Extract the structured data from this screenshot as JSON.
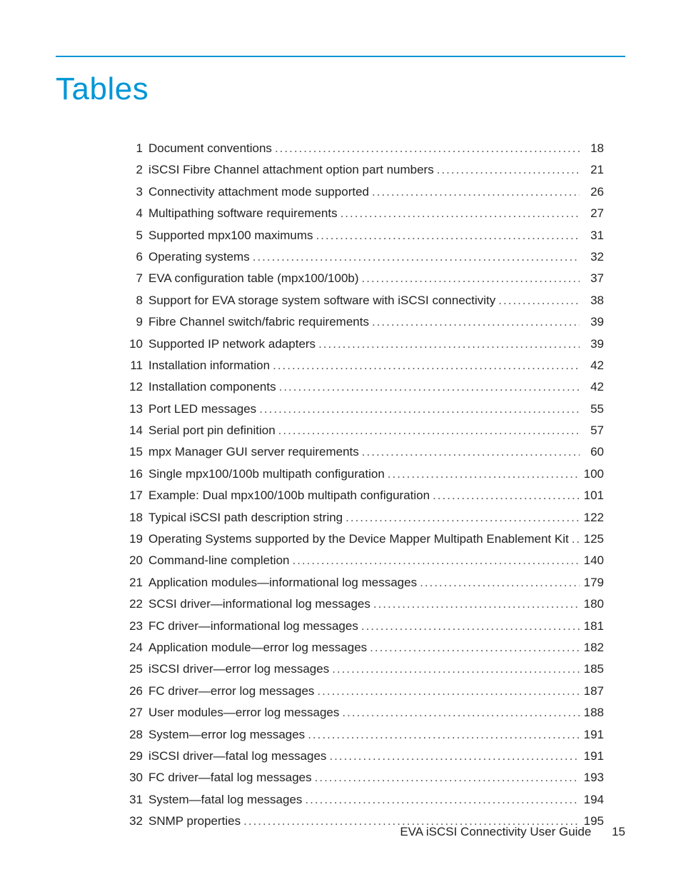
{
  "colors": {
    "accent": "#0096d6",
    "text": "#222222",
    "background": "#ffffff"
  },
  "heading": "Tables",
  "toc": {
    "entries": [
      {
        "n": "1",
        "label": "Document conventions",
        "page": "18"
      },
      {
        "n": "2",
        "label": "iSCSI Fibre Channel attachment option part numbers",
        "page": "21"
      },
      {
        "n": "3",
        "label": "Connectivity attachment mode supported",
        "page": "26"
      },
      {
        "n": "4",
        "label": "Multipathing software requirements",
        "page": "27"
      },
      {
        "n": "5",
        "label": "Supported mpx100 maximums",
        "page": "31"
      },
      {
        "n": "6",
        "label": "Operating systems",
        "page": "32"
      },
      {
        "n": "7",
        "label": "EVA configuration table (mpx100/100b)",
        "page": "37"
      },
      {
        "n": "8",
        "label": "Support for EVA storage system software with iSCSI connectivity",
        "page": "38"
      },
      {
        "n": "9",
        "label": "Fibre Channel switch/fabric requirements",
        "page": "39"
      },
      {
        "n": "10",
        "label": "Supported IP network adapters",
        "page": "39"
      },
      {
        "n": "11",
        "label": "Installation information",
        "page": "42"
      },
      {
        "n": "12",
        "label": "Installation components",
        "page": "42"
      },
      {
        "n": "13",
        "label": "Port LED messages",
        "page": "55"
      },
      {
        "n": "14",
        "label": "Serial port pin definition",
        "page": "57"
      },
      {
        "n": "15",
        "label": "mpx Manager GUI server requirements",
        "page": "60"
      },
      {
        "n": "16",
        "label": "Single mpx100/100b multipath configuration",
        "page": "100"
      },
      {
        "n": "17",
        "label": "Example: Dual mpx100/100b multipath configuration",
        "page": "101"
      },
      {
        "n": "18",
        "label": "Typical iSCSI path description string",
        "page": "122"
      },
      {
        "n": "19",
        "label": "Operating Systems supported by the Device Mapper Multipath Enablement Kit",
        "page": "125"
      },
      {
        "n": "20",
        "label": "Command-line completion",
        "page": "140"
      },
      {
        "n": "21",
        "label": "Application modules—informational log messages",
        "page": "179"
      },
      {
        "n": "22",
        "label": "SCSI driver—informational log messages",
        "page": "180"
      },
      {
        "n": "23",
        "label": "FC driver—informational log messages",
        "page": "181"
      },
      {
        "n": "24",
        "label": "Application module—error log messages",
        "page": "182"
      },
      {
        "n": "25",
        "label": "iSCSI driver—error log messages",
        "page": "185"
      },
      {
        "n": "26",
        "label": "FC driver—error log messages",
        "page": "187"
      },
      {
        "n": "27",
        "label": "User modules—error log messages",
        "page": "188"
      },
      {
        "n": "28",
        "label": "System—error log messages",
        "page": "191"
      },
      {
        "n": "29",
        "label": "iSCSI driver—fatal log messages",
        "page": "191"
      },
      {
        "n": "30",
        "label": "FC driver—fatal log messages",
        "page": "193"
      },
      {
        "n": "31",
        "label": "System—fatal log messages",
        "page": "194"
      },
      {
        "n": "32",
        "label": "SNMP properties",
        "page": "195"
      }
    ]
  },
  "footer": {
    "doc_title": "EVA iSCSI Connectivity User Guide",
    "page_number": "15"
  }
}
